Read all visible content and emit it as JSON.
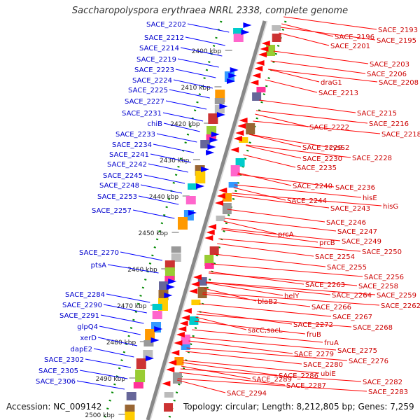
{
  "title": "Saccharopolyspora erythraea NRRL 2338, complete genome",
  "accession": "Accession: NC_009142",
  "topology": "Topology: circular; Length: 8,212,805 bp; Genes: 7,259",
  "colors": {
    "forward_label": "#0000cc",
    "forward_line": "#0000ff",
    "reverse_label": "#cc0000",
    "reverse_line": "#ff0000",
    "backbone": "#888888",
    "tick_dots": "#008800"
  },
  "kbp_ticks": [
    "2400 kbp",
    "2410 kbp",
    "2420 kbp",
    "2430 kbp",
    "2440 kbp",
    "2450 kbp",
    "2460 kbp",
    "2470 kbp",
    "2480 kbp",
    "2490 kbp",
    "2500 kbp"
  ],
  "forward_labels": [
    "SACE_2202",
    "SACE_2212",
    "SACE_2214",
    "SACE_2219",
    "SACE_2223",
    "SACE_2224",
    "SACE_2225",
    "SACE_2227",
    "SACE_2231",
    "chiB",
    "SACE_2233",
    "SACE_2234",
    "SACE_2241",
    "SACE_2242",
    "SACE_2245",
    "SACE_2248",
    "SACE_2253",
    "SACE_2257",
    "SACE_2270",
    "ptsA",
    "SACE_2284",
    "SACE_2290",
    "SACE_2291",
    "glpQ4",
    "xerD",
    "dapE2",
    "SACE_2302",
    "SACE_2305",
    "SACE_2306"
  ],
  "reverse_labels": [
    "SACE_2193",
    "SACE_2196",
    "SACE_2195",
    "SACE_2201",
    "SACE_2203",
    "SACE_2206",
    "draG1",
    "SACE_2208",
    "SACE_2213",
    "SACE_2215",
    "SACE_2216",
    "SACE_2222",
    "SACE_2218",
    "SACE_2229",
    "cysS2",
    "SACE_2230",
    "SACE_2228",
    "SACE_2235",
    "SACE_2240",
    "SACE_2236",
    "hisE",
    "SACE_2244",
    "SACE_2243",
    "hisG",
    "SACE_2246",
    "SACE_2247",
    "prcA",
    "prcB",
    "SACE_2249",
    "SACE_2250",
    "SACE_2254",
    "SACE_2255",
    "SACE_2256",
    "SACE_2263",
    "SACE_2258",
    "SACE_2264",
    "SACE_2259",
    "helY",
    "blaB2",
    "SACE_2262",
    "SACE_2266",
    "SACE_2267",
    "SACE_2272",
    "SACE_2268",
    "fruB",
    "sacC,sacL",
    "fruA",
    "SACE_2275",
    "SACE_2279",
    "SACE_2276",
    "SACE_2280",
    "ubiE",
    "SACE_2286",
    "SACE_2289",
    "SACE_2282",
    "SACE_2287",
    "SACE_2283",
    "SACE_2294"
  ]
}
